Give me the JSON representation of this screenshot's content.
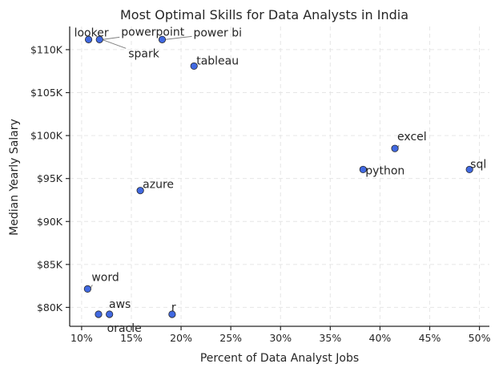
{
  "chart_data": {
    "type": "scatter",
    "title": "Most Optimal Skills for Data Analysts in India",
    "xlabel": "Percent of Data Analyst Jobs",
    "ylabel": "Median Yearly Salary",
    "xlim": [
      8.8,
      51.0
    ],
    "ylim": [
      77800,
      112700
    ],
    "x_ticks": [
      10,
      15,
      20,
      25,
      30,
      35,
      40,
      45,
      50
    ],
    "x_tick_labels": [
      "10%",
      "15%",
      "20%",
      "25%",
      "30%",
      "35%",
      "40%",
      "45%",
      "50%"
    ],
    "y_ticks": [
      80000,
      85000,
      90000,
      95000,
      100000,
      105000,
      110000
    ],
    "y_tick_labels": [
      "$80K",
      "$85K",
      "$90K",
      "$95K",
      "$100K",
      "$105K",
      "$110K"
    ],
    "grid": true,
    "marker_color": "#4169e1",
    "points": [
      {
        "label": "looker",
        "x": 10.7,
        "y": 111175
      },
      {
        "label": "powerpoint",
        "x": 11.8,
        "y": 111175
      },
      {
        "label": "spark",
        "x": 11.8,
        "y": 111175
      },
      {
        "label": "power bi",
        "x": 18.1,
        "y": 111175
      },
      {
        "label": "tableau",
        "x": 21.3,
        "y": 108087
      },
      {
        "label": "excel",
        "x": 41.5,
        "y": 98500
      },
      {
        "label": "python",
        "x": 38.3,
        "y": 96050
      },
      {
        "label": "sql",
        "x": 49.0,
        "y": 96050
      },
      {
        "label": "azure",
        "x": 15.9,
        "y": 93600
      },
      {
        "label": "word",
        "x": 10.6,
        "y": 82150
      },
      {
        "label": "aws",
        "x": 11.7,
        "y": 79200
      },
      {
        "label": "oracle",
        "x": 12.8,
        "y": 79200
      },
      {
        "label": "r",
        "x": 19.1,
        "y": 79200
      }
    ]
  }
}
